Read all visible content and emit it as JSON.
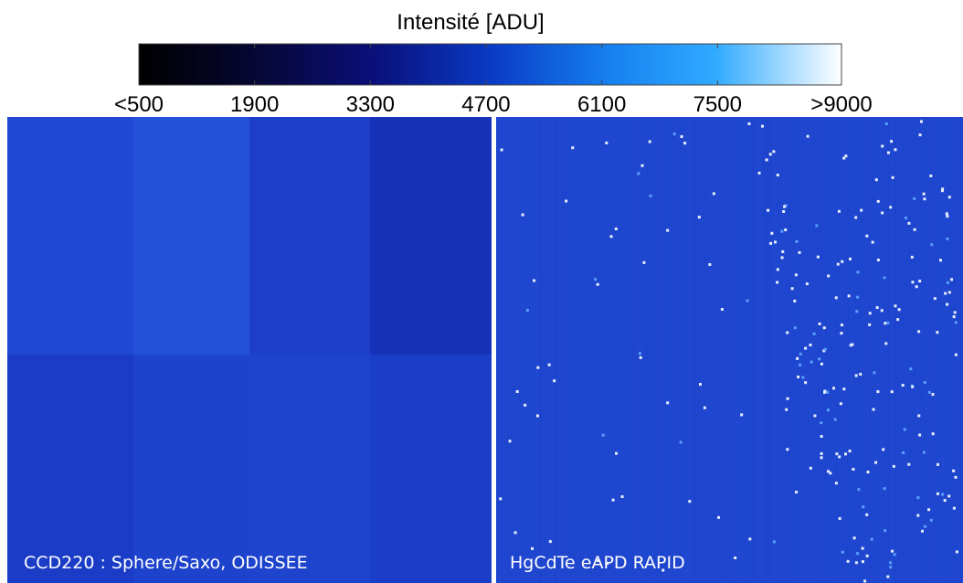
{
  "colorbar": {
    "title": "Intensité [ADU]",
    "range": [
      500,
      9000
    ],
    "ticks": [
      {
        "value": 500,
        "label": "<500"
      },
      1900,
      3300,
      4700,
      6100,
      7500,
      {
        "value": 9000,
        "label": ">9000"
      }
    ]
  },
  "panels": [
    {
      "label": "CCD220 : Sphere/Saxo, ODISSEE"
    },
    {
      "label": "HgCdTe eAPD RAPID"
    }
  ]
}
